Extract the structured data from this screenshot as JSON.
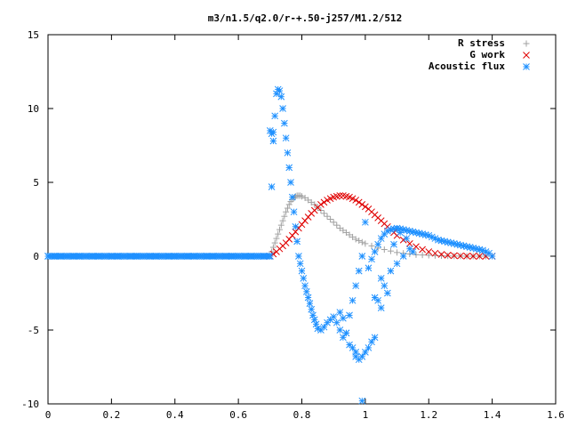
{
  "chart_data": {
    "type": "scatter",
    "title": "m3/n1.5/q2.0/r-+.50-j257/M1.2/512",
    "xlabel": "",
    "ylabel": "",
    "xlim": [
      0,
      1.6
    ],
    "ylim": [
      -10,
      15
    ],
    "grid": false,
    "legend": "top-right",
    "x_ticks": [
      "0",
      "0.2",
      "0.4",
      "0.6",
      "0.8",
      "1",
      "1.2",
      "1.4",
      "1.6"
    ],
    "y_ticks": [
      "15",
      "10",
      "5",
      "0",
      "-5",
      "-10"
    ],
    "series": [
      {
        "name": "R stress",
        "marker": "plus",
        "color": "#a0a0a0",
        "x": [
          0.7,
          0.705,
          0.71,
          0.715,
          0.72,
          0.725,
          0.73,
          0.735,
          0.74,
          0.745,
          0.75,
          0.755,
          0.76,
          0.765,
          0.77,
          0.775,
          0.78,
          0.785,
          0.79,
          0.795,
          0.8,
          0.81,
          0.82,
          0.83,
          0.84,
          0.85,
          0.86,
          0.87,
          0.88,
          0.89,
          0.9,
          0.91,
          0.92,
          0.93,
          0.94,
          0.95,
          0.96,
          0.97,
          0.98,
          0.99,
          1.0,
          1.02,
          1.04,
          1.06,
          1.08,
          1.1,
          1.12,
          1.14,
          1.16,
          1.18,
          1.2,
          1.22,
          1.24,
          1.26,
          1.28,
          1.3,
          1.32,
          1.34,
          1.36,
          1.38,
          1.4
        ],
        "y": [
          0.0,
          0.3,
          0.6,
          0.9,
          1.2,
          1.5,
          1.8,
          2.1,
          2.4,
          2.7,
          3.0,
          3.25,
          3.5,
          3.7,
          3.85,
          3.95,
          4.05,
          4.1,
          4.1,
          4.1,
          4.05,
          3.95,
          3.8,
          3.65,
          3.5,
          3.3,
          3.1,
          2.9,
          2.7,
          2.5,
          2.3,
          2.1,
          1.9,
          1.75,
          1.6,
          1.45,
          1.3,
          1.15,
          1.05,
          0.95,
          0.85,
          0.7,
          0.55,
          0.45,
          0.35,
          0.25,
          0.2,
          0.15,
          0.1,
          0.08,
          0.06,
          0.04,
          0.03,
          0.02,
          0.01,
          0.01,
          0.0,
          0.0,
          0.0,
          0.0,
          0.0
        ]
      },
      {
        "name": "G work",
        "marker": "cross",
        "color": "#e00000",
        "x": [
          0.7,
          0.71,
          0.72,
          0.73,
          0.74,
          0.75,
          0.76,
          0.77,
          0.78,
          0.79,
          0.8,
          0.81,
          0.82,
          0.83,
          0.84,
          0.85,
          0.86,
          0.87,
          0.88,
          0.89,
          0.9,
          0.91,
          0.92,
          0.93,
          0.94,
          0.95,
          0.96,
          0.97,
          0.98,
          0.99,
          1.0,
          1.01,
          1.02,
          1.03,
          1.04,
          1.05,
          1.06,
          1.07,
          1.08,
          1.09,
          1.1,
          1.12,
          1.14,
          1.16,
          1.18,
          1.2,
          1.22,
          1.24,
          1.26,
          1.28,
          1.3,
          1.32,
          1.34,
          1.36,
          1.38,
          1.4
        ],
        "y": [
          0.0,
          0.15,
          0.3,
          0.5,
          0.7,
          0.9,
          1.15,
          1.4,
          1.65,
          1.9,
          2.15,
          2.4,
          2.65,
          2.9,
          3.1,
          3.3,
          3.5,
          3.65,
          3.8,
          3.9,
          4.0,
          4.05,
          4.1,
          4.1,
          4.05,
          4.0,
          3.9,
          3.8,
          3.65,
          3.5,
          3.35,
          3.2,
          3.0,
          2.8,
          2.6,
          2.4,
          2.2,
          2.0,
          1.8,
          1.6,
          1.4,
          1.1,
          0.85,
          0.65,
          0.45,
          0.3,
          0.2,
          0.12,
          0.07,
          0.04,
          0.02,
          0.01,
          0.0,
          0.0,
          0.0,
          0.0
        ]
      },
      {
        "name": "Acoustic flux",
        "marker": "star",
        "color": "#1e90ff",
        "x": [
          0.0,
          0.02,
          0.04,
          0.06,
          0.08,
          0.1,
          0.12,
          0.14,
          0.16,
          0.18,
          0.2,
          0.22,
          0.24,
          0.26,
          0.28,
          0.3,
          0.32,
          0.34,
          0.36,
          0.38,
          0.4,
          0.42,
          0.44,
          0.46,
          0.48,
          0.5,
          0.52,
          0.54,
          0.56,
          0.58,
          0.6,
          0.62,
          0.64,
          0.66,
          0.68,
          0.7,
          0.705,
          0.71,
          0.715,
          0.72,
          0.725,
          0.73,
          0.735,
          0.74,
          0.745,
          0.75,
          0.755,
          0.76,
          0.765,
          0.77,
          0.775,
          0.78,
          0.785,
          0.79,
          0.795,
          0.8,
          0.805,
          0.81,
          0.815,
          0.82,
          0.825,
          0.83,
          0.835,
          0.84,
          0.845,
          0.85,
          0.86,
          0.87,
          0.88,
          0.89,
          0.9,
          0.91,
          0.92,
          0.93,
          0.94,
          0.95,
          0.96,
          0.97,
          0.98,
          0.99,
          1.0,
          1.01,
          1.02,
          1.03,
          1.04,
          1.05,
          1.06,
          1.07,
          1.08,
          1.09,
          1.1,
          1.11,
          1.12,
          1.13,
          1.14,
          1.15,
          1.16,
          1.17,
          1.18,
          1.19,
          1.2,
          1.21,
          1.22,
          1.23,
          1.24,
          1.25,
          1.26,
          1.27,
          1.28,
          1.29,
          1.3,
          1.31,
          1.32,
          1.33,
          1.34,
          1.35,
          1.36,
          1.37,
          1.38,
          1.39,
          1.4,
          0.7,
          0.705,
          0.71,
          0.98,
          1.0,
          1.02,
          1.04,
          1.06,
          1.08,
          1.1,
          1.12,
          1.14,
          0.96,
          0.99,
          1.03,
          1.05,
          1.07,
          0.93,
          0.95,
          0.97,
          1.01,
          1.03,
          1.05,
          0.99,
          0.92,
          0.94,
          0.97,
          1.09,
          1.11,
          1.13,
          1.15
        ],
        "y": [
          0.0,
          0.0,
          0.0,
          0.0,
          0.0,
          0.0,
          0.0,
          0.0,
          0.0,
          0.0,
          0.0,
          0.0,
          0.0,
          0.0,
          0.0,
          0.0,
          0.0,
          0.0,
          0.0,
          0.0,
          0.0,
          0.0,
          0.0,
          0.0,
          0.0,
          0.0,
          0.0,
          0.0,
          0.0,
          0.0,
          0.0,
          0.0,
          0.0,
          0.0,
          0.0,
          0.0,
          4.7,
          8.4,
          9.5,
          11.0,
          11.3,
          11.2,
          10.8,
          10.0,
          9.0,
          8.0,
          7.0,
          6.0,
          5.0,
          4.0,
          3.0,
          2.0,
          1.0,
          0.0,
          -0.5,
          -1.0,
          -1.5,
          -2.0,
          -2.4,
          -2.8,
          -3.2,
          -3.6,
          -4.0,
          -4.3,
          -4.6,
          -4.9,
          -5.0,
          -4.8,
          -4.5,
          -4.3,
          -4.1,
          -4.5,
          -5.0,
          -5.5,
          -5.2,
          -4.0,
          -3.0,
          -2.0,
          -1.0,
          0.0,
          2.3,
          -0.8,
          -0.2,
          0.3,
          0.8,
          1.2,
          1.5,
          1.7,
          1.8,
          1.85,
          1.9,
          1.85,
          1.8,
          1.75,
          1.7,
          1.65,
          1.6,
          1.55,
          1.5,
          1.45,
          1.4,
          1.3,
          1.2,
          1.1,
          1.05,
          1.0,
          0.95,
          0.9,
          0.85,
          0.8,
          0.75,
          0.7,
          0.65,
          0.6,
          0.55,
          0.5,
          0.45,
          0.4,
          0.3,
          0.2,
          0.0,
          8.5,
          8.3,
          7.8,
          -7.0,
          -6.5,
          -5.8,
          -3.0,
          -2.0,
          -1.0,
          -0.5,
          0.0,
          0.5,
          -6.2,
          -6.8,
          -5.5,
          -3.5,
          -2.5,
          -4.2,
          -6.0,
          -6.5,
          -6.2,
          -2.8,
          -1.5,
          -9.8,
          -3.8,
          -5.2,
          -6.8,
          0.8,
          1.6,
          1.2,
          0.3
        ]
      }
    ]
  }
}
